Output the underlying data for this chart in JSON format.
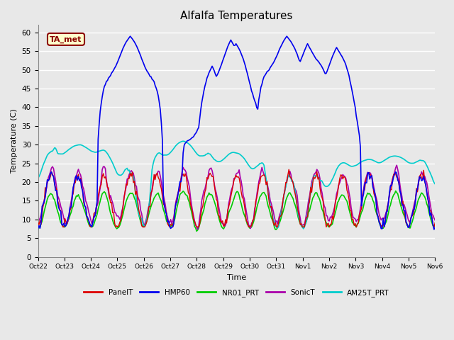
{
  "title": "Alfalfa Temperatures",
  "xlabel": "Time",
  "ylabel": "Temperature (C)",
  "ylim": [
    0,
    62
  ],
  "yticks": [
    0,
    5,
    10,
    15,
    20,
    25,
    30,
    35,
    40,
    45,
    50,
    55,
    60
  ],
  "annotation_text": "TA_met",
  "annotation_color": "#8B0000",
  "annotation_bg": "#FFFFCC",
  "series_colors": {
    "PanelT": "#DD0000",
    "HMP60": "#0000EE",
    "NR01_PRT": "#00CC00",
    "SonicT": "#AA00AA",
    "AM25T_PRT": "#00CCCC"
  },
  "series_lw": {
    "PanelT": 1.0,
    "HMP60": 1.2,
    "NR01_PRT": 1.2,
    "SonicT": 1.2,
    "AM25T_PRT": 1.2
  },
  "background_color": "#E8E8E8",
  "plot_bg_color": "#E8E8E8",
  "tick_labels": [
    "Oct 22",
    "Oct 23",
    "Oct 24",
    "Oct 25",
    "Oct 26",
    "Oct 27",
    "Oct 28",
    "Oct 29",
    "Oct 30",
    "Oct 31",
    "Nov 1",
    "Nov 2",
    "Nov 3",
    "Nov 4",
    "Nov 5",
    "Nov 6"
  ],
  "legend_entries": [
    "PanelT",
    "HMP60",
    "NR01_PRT",
    "SonicT",
    "AM25T_PRT"
  ]
}
